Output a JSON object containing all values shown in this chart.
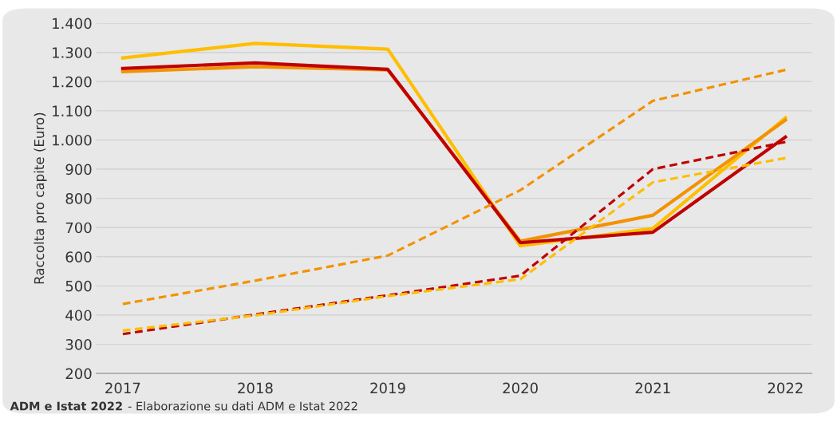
{
  "chart_data": {
    "type": "line",
    "ylabel": "Raccolta pro capite (Euro)",
    "categories": [
      "2017",
      "2018",
      "2019",
      "2020",
      "2021",
      "2022"
    ],
    "series": [
      {
        "color": "#ffbf00",
        "line_style": "solid",
        "values": [
          1281,
          1331,
          1311,
          637,
          697,
          1076
        ]
      },
      {
        "color": "#f39200",
        "line_style": "solid",
        "values": [
          1234,
          1251,
          1240,
          653,
          742,
          1068
        ]
      },
      {
        "color": "#c00000",
        "line_style": "solid",
        "values": [
          1245,
          1264,
          1242,
          648,
          684,
          1010
        ]
      },
      {
        "color": "#f39200",
        "line_style": "dashed",
        "values": [
          438,
          518,
          604,
          828,
          1134,
          1240
        ]
      },
      {
        "color": "#c00000",
        "line_style": "dashed",
        "values": [
          335,
          402,
          468,
          535,
          900,
          993
        ]
      },
      {
        "color": "#ffbf00",
        "line_style": "dashed",
        "values": [
          347,
          399,
          465,
          523,
          855,
          938
        ]
      }
    ],
    "ylim": [
      200,
      1400
    ],
    "yticks": [
      200,
      300,
      400,
      500,
      600,
      700,
      800,
      900,
      {
        "value": 1000,
        "label": "1.000"
      },
      {
        "value": 1100,
        "label": "1.100"
      },
      {
        "value": 1200,
        "label": "1.200"
      },
      {
        "value": 1300,
        "label": "1.300"
      },
      {
        "value": 1400,
        "label": "1.400"
      }
    ],
    "grid": "y",
    "legend": false,
    "marker": "none",
    "annotations": [
      "ADM e Istat 2022",
      "- Elaborazione su dati ADM e Istat 2022"
    ]
  }
}
